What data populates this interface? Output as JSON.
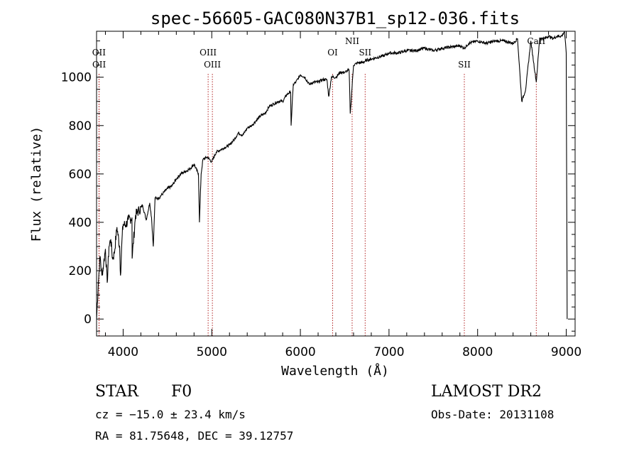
{
  "chart_data": {
    "type": "line",
    "title": "spec-56605-GAC080N37B1_sp12-036.fits",
    "xlabel": "Wavelength (Å)",
    "ylabel": "Flux (relative)",
    "xlim": [
      3700,
      9100
    ],
    "ylim": [
      -70,
      1190
    ],
    "xticks": [
      4000,
      5000,
      6000,
      7000,
      8000,
      9000
    ],
    "yticks": [
      0,
      200,
      400,
      600,
      800,
      1000
    ],
    "x_minor_step": 200,
    "y_minor_step": 50,
    "spectrum": {
      "x": [
        3700,
        3720,
        3740,
        3760,
        3780,
        3800,
        3820,
        3840,
        3860,
        3880,
        3900,
        3930,
        3960,
        3970,
        3990,
        4000,
        4030,
        4060,
        4100,
        4101,
        4140,
        4180,
        4220,
        4260,
        4300,
        4320,
        4340,
        4360,
        4400,
        4450,
        4500,
        4550,
        4600,
        4650,
        4700,
        4750,
        4800,
        4850,
        4861,
        4880,
        4900,
        4950,
        5000,
        5050,
        5100,
        5150,
        5200,
        5250,
        5300,
        5350,
        5400,
        5450,
        5500,
        5550,
        5600,
        5650,
        5700,
        5750,
        5800,
        5850,
        5890,
        5895,
        5920,
        5950,
        6000,
        6050,
        6100,
        6150,
        6200,
        6250,
        6300,
        6320,
        6350,
        6400,
        6450,
        6500,
        6550,
        6563,
        6600,
        6650,
        6700,
        6750,
        6800,
        6850,
        6900,
        6950,
        7000,
        7100,
        7200,
        7300,
        7400,
        7500,
        7600,
        7700,
        7800,
        7850,
        7900,
        8000,
        8100,
        8200,
        8300,
        8400,
        8450,
        8498,
        8542,
        8600,
        8662,
        8700,
        8750,
        8800,
        8850,
        8900,
        8950,
        8980,
        9000,
        9010
      ],
      "y": [
        0,
        150,
        260,
        180,
        230,
        290,
        150,
        300,
        330,
        250,
        270,
        380,
        300,
        180,
        350,
        390,
        390,
        410,
        420,
        250,
        430,
        450,
        470,
        410,
        480,
        420,
        300,
        500,
        500,
        520,
        540,
        550,
        580,
        600,
        610,
        620,
        640,
        600,
        400,
        600,
        660,
        670,
        650,
        690,
        700,
        710,
        720,
        740,
        770,
        760,
        790,
        800,
        820,
        840,
        850,
        880,
        890,
        900,
        900,
        930,
        940,
        800,
        970,
        980,
        1010,
        1000,
        970,
        980,
        980,
        990,
        990,
        920,
        1000,
        1000,
        1020,
        1020,
        1030,
        850,
        1050,
        1060,
        1060,
        1070,
        1075,
        1080,
        1085,
        1090,
        1100,
        1100,
        1110,
        1110,
        1120,
        1110,
        1120,
        1125,
        1130,
        1120,
        1140,
        1150,
        1140,
        1150,
        1150,
        1140,
        1160,
        900,
        950,
        1150,
        980,
        1160,
        1160,
        1170,
        1160,
        1170,
        1170,
        1190,
        1100,
        0
      ],
      "color": "#000000"
    },
    "emission_lines": [
      {
        "label": "OII",
        "x": 3727,
        "row": "high"
      },
      {
        "label": "OII",
        "x": 3729,
        "row": "low"
      },
      {
        "label": "OIII",
        "x": 4959,
        "row": "high"
      },
      {
        "label": "OIII",
        "x": 5007,
        "row": "low"
      },
      {
        "label": "OI",
        "x": 6364,
        "row": "mid"
      },
      {
        "label": "NII",
        "x": 6584,
        "row": "top"
      },
      {
        "label": "SII",
        "x": 6731,
        "row": "mid"
      },
      {
        "label": "SII",
        "x": 7850,
        "row": "low"
      },
      {
        "label": "CaII",
        "x": 8662,
        "row": "top"
      }
    ],
    "line_color": "#b22222"
  },
  "info": {
    "object_type": "STAR",
    "subclass": "F0",
    "redshift_text": "cz = −15.0 ± 23.4 km/s",
    "coords_text": "RA =  81.75648, DEC =  39.12757",
    "survey": "LAMOST DR2",
    "obs_date_text": "Obs-Date: 20131108"
  }
}
